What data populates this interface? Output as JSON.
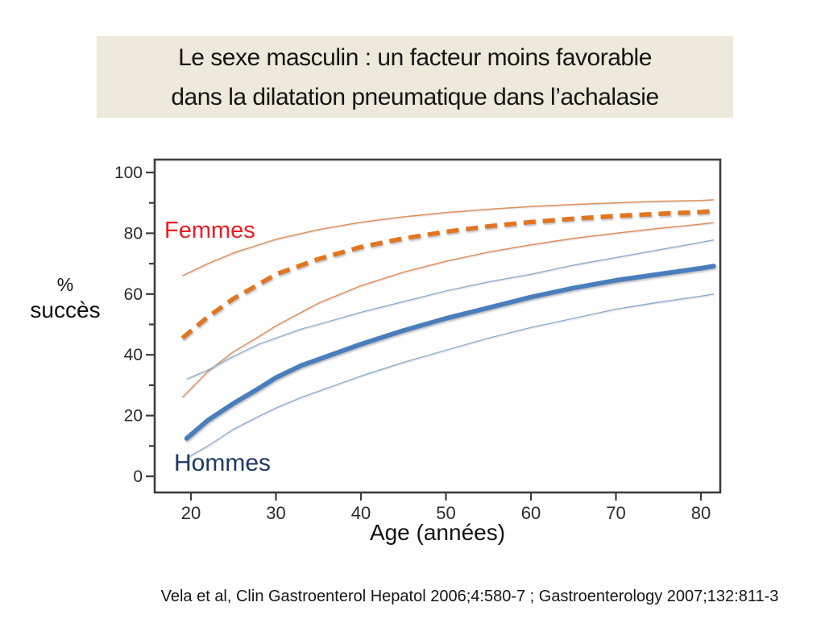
{
  "slide": {
    "title_line1": "Le sexe masculin : un facteur moins favorable",
    "title_line2": "dans la dilatation pneumatique dans l’achalasie",
    "title_bg": "#EDEADC",
    "citation": "Vela et al, Clin Gastroenterol Hepatol 2006;4:580-7 ; Gastroenterology 2007;132:811-3"
  },
  "chart_data": {
    "type": "line",
    "title": "",
    "xlabel": "Age (années)",
    "ylabel_line1": "%",
    "ylabel_line2": "succès",
    "grid": false,
    "legend_position": "inline-labels",
    "x_axis": {
      "range": [
        20,
        80
      ],
      "ticks": [
        20,
        30,
        40,
        50,
        60,
        70,
        80
      ]
    },
    "y_axis": {
      "range": [
        0,
        100
      ],
      "ticks": [
        0,
        20,
        40,
        60,
        80,
        100
      ],
      "minor_ticks": [
        10,
        30,
        50,
        70,
        90
      ]
    },
    "labels": {
      "femmes": {
        "text": "Femmes",
        "color": "#EC1C24"
      },
      "hommes": {
        "text": "Hommes",
        "color": "#1F3864"
      }
    },
    "series": [
      {
        "name": "Femmes upper CI",
        "role": "femmes-ci",
        "color": "#E39058",
        "x": [
          19,
          22,
          25,
          28,
          30,
          35,
          40,
          45,
          50,
          55,
          60,
          65,
          70,
          75,
          80,
          81.5
        ],
        "y": [
          66,
          70,
          73.5,
          76.2,
          78,
          81.2,
          83.6,
          85.4,
          86.8,
          87.9,
          88.8,
          89.5,
          90,
          90.5,
          90.8,
          91
        ]
      },
      {
        "name": "Femmes (moyenne)",
        "role": "femmes-mean",
        "color": "#E2751F",
        "x": [
          19,
          22,
          25,
          28,
          30,
          35,
          40,
          45,
          50,
          55,
          60,
          65,
          70,
          75,
          80,
          81.5
        ],
        "y": [
          45.5,
          52.5,
          58.5,
          63.2,
          66.5,
          71.5,
          75.5,
          78.3,
          80.5,
          82.3,
          83.7,
          84.8,
          85.7,
          86.4,
          87,
          87.3
        ]
      },
      {
        "name": "Femmes lower CI",
        "role": "femmes-ci",
        "color": "#E39058",
        "x": [
          19,
          22,
          25,
          28,
          30,
          35,
          40,
          45,
          50,
          55,
          60,
          65,
          70,
          75,
          80,
          81.5
        ],
        "y": [
          26,
          34.5,
          41,
          46,
          49.5,
          57,
          62.7,
          67.2,
          70.8,
          73.8,
          76.2,
          78.3,
          80,
          81.6,
          83,
          83.5
        ]
      },
      {
        "name": "Hommes upper CI",
        "role": "hommes-ci",
        "color": "#8FAECF",
        "x": [
          19.5,
          22,
          25,
          28,
          30,
          33,
          35,
          40,
          45,
          50,
          55,
          60,
          65,
          70,
          75,
          80,
          81.5
        ],
        "y": [
          32,
          35,
          39.5,
          43.5,
          45.5,
          48.5,
          50,
          54,
          57.5,
          61,
          64,
          66.5,
          69.5,
          72,
          74.5,
          77,
          77.8
        ]
      },
      {
        "name": "Hommes (moyenne)",
        "role": "hommes-mean",
        "color": "#4A7EBB",
        "x": [
          19.5,
          22,
          25,
          28,
          30,
          33,
          35,
          40,
          45,
          50,
          55,
          60,
          65,
          70,
          75,
          80,
          81.5
        ],
        "y": [
          12.5,
          18.5,
          24,
          29,
          32.5,
          36.5,
          38.5,
          43.5,
          48,
          52,
          55.5,
          59,
          62,
          64.5,
          66.5,
          68.5,
          69.2
        ]
      },
      {
        "name": "Hommes lower CI",
        "role": "hommes-ci",
        "color": "#8FAECF",
        "x": [
          19.5,
          22,
          25,
          28,
          30,
          33,
          35,
          40,
          45,
          50,
          55,
          60,
          65,
          70,
          75,
          80,
          81.5
        ],
        "y": [
          6,
          10,
          15.5,
          19.8,
          22.5,
          26,
          28,
          33,
          37.5,
          41.5,
          45.5,
          49,
          52,
          55,
          57.3,
          59.3,
          60
        ]
      }
    ]
  }
}
